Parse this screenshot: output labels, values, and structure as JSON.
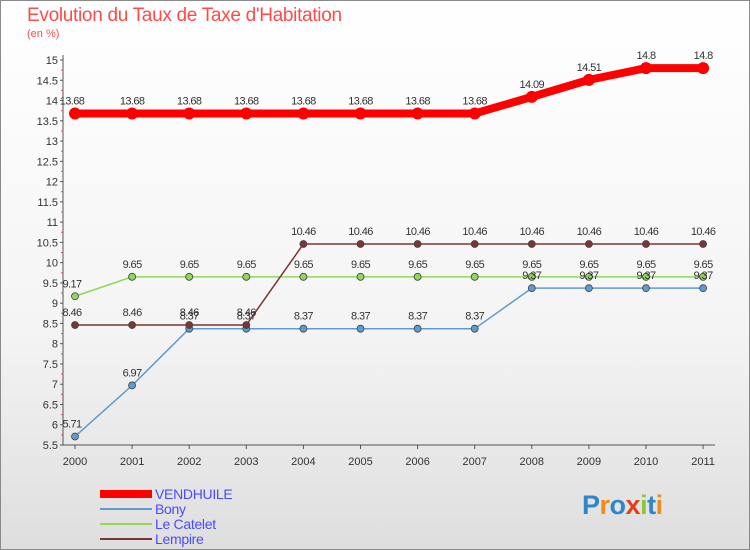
{
  "chart_data": {
    "type": "line",
    "title": "Evolution du Taux de Taxe d'Habitation",
    "ylabel": "(en %)",
    "xlabel": "",
    "categories": [
      "2000",
      "2001",
      "2002",
      "2003",
      "2004",
      "2005",
      "2006",
      "2007",
      "2008",
      "2009",
      "2010",
      "2011"
    ],
    "ylim": [
      5.5,
      15
    ],
    "y_ticks": [
      "5.5",
      "6",
      "6.5",
      "7",
      "7.5",
      "8",
      "8.5",
      "9",
      "9.5",
      "10",
      "10.5",
      "11",
      "11.5",
      "12",
      "12.5",
      "13",
      "13.5",
      "14",
      "14.5",
      "15"
    ],
    "grid": false,
    "legend_position": "bottom-left",
    "series": [
      {
        "name": "VENDHUILE",
        "color": "#ff0000",
        "values": [
          13.68,
          13.68,
          13.68,
          13.68,
          13.68,
          13.68,
          13.68,
          13.68,
          14.09,
          14.51,
          14.8,
          14.8
        ],
        "labels": [
          "13.68",
          "13.68",
          "13.68",
          "13.68",
          "13.68",
          "13.68",
          "13.68",
          "13.68",
          "14.09",
          "14.51",
          "14.8",
          "14.8"
        ]
      },
      {
        "name": "Bony",
        "color": "#5f9ad0",
        "values": [
          5.71,
          6.97,
          8.37,
          8.37,
          8.37,
          8.37,
          8.37,
          8.37,
          9.37,
          9.37,
          9.37,
          9.37
        ],
        "labels": [
          "5.71",
          "6.97",
          "8.37",
          "8.37",
          "8.37",
          "8.37",
          "8.37",
          "8.37",
          "9.37",
          "9.37",
          "9.37",
          "9.37"
        ]
      },
      {
        "name": "Le Catelet",
        "color": "#8fd85a",
        "values": [
          9.17,
          9.65,
          9.65,
          9.65,
          9.65,
          9.65,
          9.65,
          9.65,
          9.65,
          9.65,
          9.65,
          9.65
        ],
        "labels": [
          "9.17",
          "9.65",
          "9.65",
          "9.65",
          "9.65",
          "9.65",
          "9.65",
          "9.65",
          "9.65",
          "9.65",
          "9.65",
          "9.65"
        ]
      },
      {
        "name": "Lempire",
        "color": "#7a3535",
        "values": [
          8.46,
          8.46,
          8.46,
          8.46,
          10.46,
          10.46,
          10.46,
          10.46,
          10.46,
          10.46,
          10.46,
          10.46
        ],
        "labels": [
          "8.46",
          "8.46",
          "8.46",
          "8.46",
          "10.46",
          "10.46",
          "10.46",
          "10.46",
          "10.46",
          "10.46",
          "10.46",
          "10.46"
        ]
      }
    ]
  },
  "logo": {
    "letters": [
      "P",
      "r",
      "o",
      "x",
      "i",
      "t",
      "i"
    ],
    "colors": [
      "#2f86c8",
      "#f08c1a",
      "#2f86c8",
      "#e0401e",
      "#8bc53f",
      "#2f86c8",
      "#f08c1a"
    ]
  }
}
